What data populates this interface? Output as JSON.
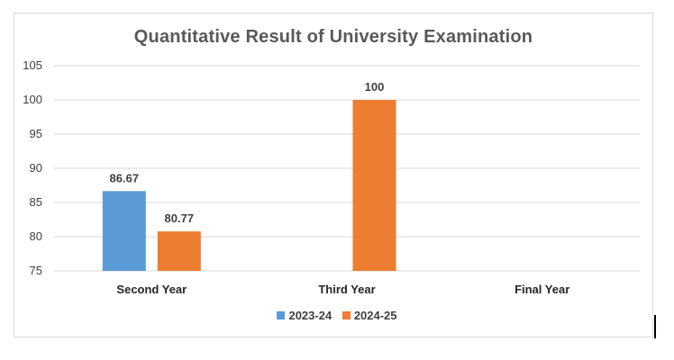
{
  "chart_data": {
    "type": "bar",
    "title": "Quantitative Result of University Examination",
    "xlabel": "",
    "ylabel": "",
    "categories": [
      "Second Year",
      "Third Year",
      "Final Year"
    ],
    "series": [
      {
        "name": "2023-24",
        "color": "#5b9bd5",
        "values": [
          86.67,
          null,
          null
        ]
      },
      {
        "name": "2024-25",
        "color": "#ed7d31",
        "values": [
          80.77,
          100,
          null
        ]
      }
    ],
    "ylim": [
      75,
      105
    ],
    "yticks": [
      75,
      80,
      85,
      90,
      95,
      100,
      105
    ],
    "grid": true,
    "legend": "bottom"
  }
}
